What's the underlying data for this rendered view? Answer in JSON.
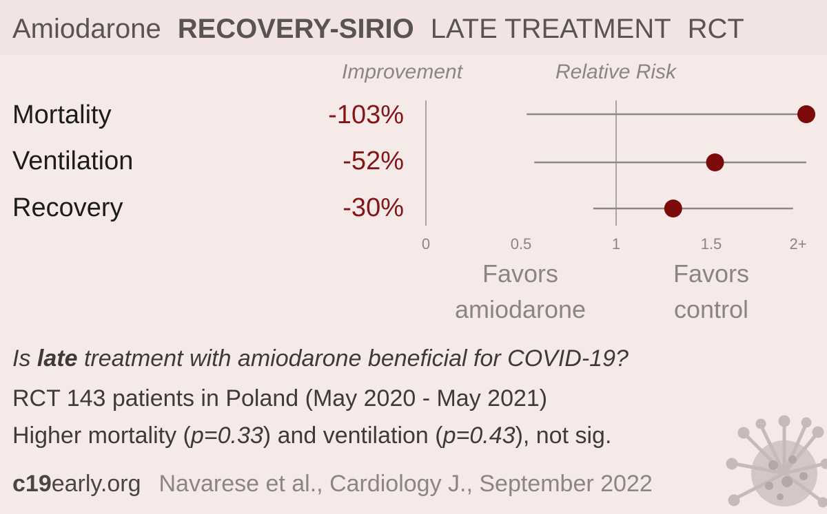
{
  "title": {
    "drug": "Amiodarone",
    "trial": "RECOVERY-SIRIO",
    "stage": "LATE TREATMENT",
    "design": "RCT"
  },
  "columns": {
    "improvement": "Improvement",
    "relative_risk": "Relative Risk"
  },
  "favors": {
    "left_line1": "Favors",
    "left_line2": "amiodarone",
    "right_line1": "Favors",
    "right_line2": "control"
  },
  "summary": {
    "question_prefix": "Is ",
    "question_bold": "late",
    "question_suffix": " treatment with amiodarone beneficial for COVID-19?",
    "line2": "RCT 143 patients in Poland (May 2020 - May 2021)",
    "line3_a": "Higher mortality (",
    "line3_p1": "p=0.33",
    "line3_b": ") and ventilation (",
    "line3_p2": "p=0.43",
    "line3_c": "), not sig."
  },
  "footer": {
    "brand_bold": "c19",
    "brand_rest": "early.org",
    "citation": "Navarese et al., Cardiology J., September 2022"
  },
  "colors": {
    "point": "#7d0a0a",
    "ci_line": "#8c8786",
    "axis": "#a9a4a2",
    "improvement_text": "#861616"
  },
  "chart_data": {
    "type": "forest",
    "xlabel": "Relative Risk",
    "x_ticks": [
      "0",
      "0.5",
      "1",
      "1.5",
      "2+"
    ],
    "xlim": [
      0,
      2
    ],
    "reference_line": 1,
    "rows": [
      {
        "label": "Mortality",
        "improvement": "-103%",
        "rr": 2.03,
        "ci_low": 0.53,
        "ci_high": 2.03
      },
      {
        "label": "Ventilation",
        "improvement": "-52%",
        "rr": 1.52,
        "ci_low": 0.57,
        "ci_high": 2.0
      },
      {
        "label": "Recovery",
        "improvement": "-30%",
        "rr": 1.3,
        "ci_low": 0.88,
        "ci_high": 1.93
      }
    ]
  }
}
